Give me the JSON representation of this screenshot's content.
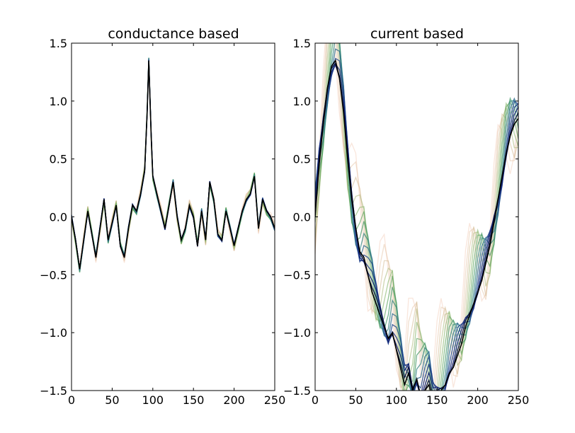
{
  "chart_data": [
    {
      "type": "line",
      "title": "conductance based",
      "xlabel": "",
      "ylabel": "",
      "xlim": [
        0,
        250
      ],
      "ylim": [
        -1.5,
        1.5
      ],
      "xticks": [
        "0",
        "50",
        "100",
        "150",
        "200",
        "250"
      ],
      "yticks": [
        "1.5",
        "1.0",
        "0.5",
        "0.0",
        "−0.5",
        "−1.0",
        "−1.5"
      ],
      "grid": false,
      "legend": "none",
      "series_count": 14,
      "colormap": [
        "#000000",
        "#0d1b6e",
        "#1f3f8f",
        "#2a7a8a",
        "#3f9a55",
        "#8fb86a",
        "#d6b890",
        "#f1c8b2"
      ],
      "base_x": [
        0,
        5,
        10,
        15,
        20,
        25,
        30,
        35,
        40,
        45,
        50,
        55,
        60,
        65,
        70,
        75,
        80,
        85,
        90,
        93,
        95,
        98,
        100,
        105,
        110,
        115,
        120,
        125,
        130,
        135,
        140,
        145,
        150,
        155,
        160,
        165,
        170,
        175,
        180,
        185,
        190,
        195,
        200,
        205,
        210,
        215,
        220,
        225,
        230,
        235,
        240,
        245,
        250
      ],
      "base_y": [
        0.0,
        -0.2,
        -0.45,
        -0.2,
        0.05,
        -0.15,
        -0.35,
        -0.1,
        0.15,
        -0.2,
        -0.05,
        0.1,
        -0.25,
        -0.35,
        -0.1,
        0.1,
        0.05,
        0.2,
        0.4,
        0.9,
        1.35,
        0.7,
        0.35,
        0.2,
        0.05,
        -0.1,
        0.1,
        0.3,
        0.0,
        -0.2,
        -0.1,
        0.1,
        0.0,
        -0.25,
        0.05,
        -0.2,
        0.3,
        0.15,
        -0.15,
        -0.2,
        0.05,
        -0.1,
        -0.25,
        -0.1,
        0.05,
        0.15,
        0.2,
        0.35,
        -0.1,
        0.15,
        0.05,
        0.0,
        -0.1
      ],
      "trace_spread": 0.05
    },
    {
      "type": "line",
      "title": "current based",
      "xlabel": "",
      "ylabel": "",
      "xlim": [
        0,
        250
      ],
      "ylim": [
        -1.5,
        1.5
      ],
      "xticks": [
        "0",
        "50",
        "100",
        "150",
        "200",
        "250"
      ],
      "yticks": [
        "1.5",
        "1.0",
        "0.5",
        "0.0",
        "−0.5",
        "−1.0",
        "−1.5"
      ],
      "grid": false,
      "legend": "none",
      "series_count": 14,
      "colormap": [
        "#000000",
        "#0d1b6e",
        "#1f3f8f",
        "#2a7a8a",
        "#3f9a55",
        "#8fb86a",
        "#d6b890",
        "#f1c8b2"
      ],
      "base_x": [
        0,
        5,
        10,
        15,
        20,
        25,
        30,
        35,
        40,
        45,
        50,
        55,
        60,
        65,
        70,
        75,
        80,
        85,
        90,
        95,
        100,
        105,
        110,
        115,
        120,
        125,
        130,
        135,
        140,
        145,
        150,
        155,
        160,
        165,
        170,
        175,
        180,
        185,
        190,
        195,
        200,
        205,
        210,
        215,
        220,
        225,
        230,
        235,
        240,
        245,
        250
      ],
      "base_y": [
        0.0,
        0.45,
        0.8,
        1.1,
        1.3,
        1.35,
        1.2,
        0.9,
        0.5,
        0.15,
        -0.1,
        -0.3,
        -0.35,
        -0.5,
        -0.65,
        -0.75,
        -0.85,
        -0.95,
        -1.05,
        -1.0,
        -1.15,
        -1.3,
        -1.45,
        -1.35,
        -1.5,
        -1.4,
        -1.55,
        -1.5,
        -1.45,
        -1.6,
        -1.55,
        -1.5,
        -1.45,
        -1.35,
        -1.3,
        -1.2,
        -1.1,
        -0.95,
        -0.85,
        -0.75,
        -0.65,
        -0.55,
        -0.4,
        -0.25,
        -0.05,
        0.15,
        0.35,
        0.55,
        0.7,
        0.8,
        0.85
      ],
      "trace_spread": 0.5
    }
  ]
}
